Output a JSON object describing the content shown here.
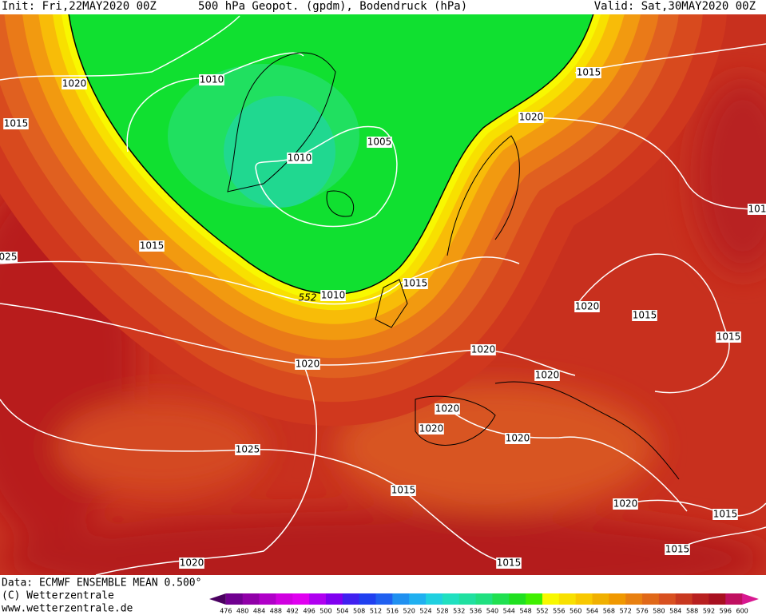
{
  "header": {
    "init": "Init: Fri,22MAY2020 00Z",
    "title": "500 hPa Geopot. (gpdm), Bodendruck (hPa)",
    "valid": "Valid: Sat,30MAY2020 00Z"
  },
  "isobar_labels": [
    "1010",
    "1020",
    "1015",
    "1010",
    "1005",
    "1015",
    "1020",
    "1015",
    "552",
    "1010",
    "1015",
    "1020",
    "1015",
    "1020",
    "1020",
    "1020",
    "1015",
    "1020",
    "1020",
    "1020",
    "1025",
    "1015",
    "1020",
    "1015",
    "1015",
    "1015",
    "1020",
    "025",
    "101"
  ],
  "footer": {
    "data": "Data: ECMWF ENSEMBLE MEAN 0.500°",
    "copyright": "(C) Wetterzentrale",
    "url": "www.wetterzentrale.de"
  },
  "colorbar": {
    "labels": [
      476,
      480,
      484,
      488,
      492,
      496,
      500,
      504,
      508,
      512,
      516,
      520,
      524,
      528,
      532,
      536,
      540,
      544,
      548,
      552,
      556,
      560,
      564,
      568,
      572,
      576,
      580,
      584,
      588,
      592,
      596,
      600
    ]
  }
}
